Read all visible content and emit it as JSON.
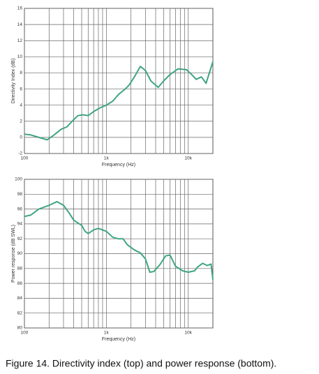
{
  "chart_data": [
    {
      "type": "line",
      "ylabel": "Directivity Index (dB)",
      "xlabel": "Frequency (Hz)",
      "log_x": true,
      "grid": true,
      "color": "#3fa57f",
      "xlim": [
        100,
        20000
      ],
      "ylim": [
        -2,
        16
      ],
      "xticks": [
        100,
        {
          "value": 1000,
          "label": "1k"
        },
        {
          "value": 10000,
          "label": "10k"
        }
      ],
      "x_minor_ticks": [
        200,
        300,
        400,
        500,
        600,
        700,
        800,
        900,
        2000,
        3000,
        4000,
        5000,
        6000,
        7000,
        8000,
        9000
      ],
      "yticks": [
        -2,
        0,
        2,
        4,
        6,
        8,
        10,
        12,
        14,
        16
      ],
      "x": [
        100,
        120,
        150,
        190,
        230,
        280,
        330,
        400,
        450,
        520,
        600,
        700,
        850,
        1000,
        1200,
        1400,
        1700,
        1900,
        2200,
        2600,
        3000,
        3500,
        4300,
        5000,
        6000,
        7500,
        9500,
        11000,
        12500,
        14500,
        16500,
        20000
      ],
      "values": [
        0.4,
        0.3,
        0,
        -0.3,
        0.3,
        1,
        1.3,
        2.2,
        2.7,
        2.8,
        2.7,
        3.2,
        3.7,
        4,
        4.5,
        5.3,
        6,
        6.5,
        7.5,
        8.8,
        8.3,
        7,
        6.2,
        7,
        7.8,
        8.5,
        8.4,
        7.8,
        7.2,
        7.5,
        6.7,
        9.4
      ]
    },
    {
      "type": "line",
      "ylabel": "Power response (dB SWL)",
      "xlabel": "Frequency (Hz)",
      "log_x": true,
      "grid": true,
      "color": "#3fa57f",
      "xlim": [
        100,
        20000
      ],
      "ylim": [
        80,
        100
      ],
      "xticks": [
        100,
        {
          "value": 1000,
          "label": "1k"
        },
        {
          "value": 10000,
          "label": "10k"
        }
      ],
      "x_minor_ticks": [
        200,
        300,
        400,
        500,
        600,
        700,
        800,
        900,
        2000,
        3000,
        4000,
        5000,
        6000,
        7000,
        8000,
        9000
      ],
      "yticks": [
        80,
        82,
        84,
        86,
        88,
        90,
        92,
        94,
        96,
        98,
        100
      ],
      "x": [
        100,
        120,
        150,
        200,
        250,
        300,
        350,
        400,
        500,
        550,
        600,
        700,
        800,
        1000,
        1200,
        1400,
        1600,
        1800,
        2200,
        2600,
        3000,
        3400,
        3800,
        4500,
        5300,
        6000,
        7000,
        8500,
        10000,
        12000,
        13000,
        15000,
        17000,
        19000,
        20000
      ],
      "values": [
        95,
        95.2,
        96,
        96.5,
        97,
        96.5,
        95.5,
        94.5,
        93.8,
        93,
        92.7,
        93.2,
        93.4,
        93,
        92.2,
        92,
        92,
        91.2,
        90.5,
        90.1,
        89.3,
        87.5,
        87.6,
        88.5,
        89.7,
        89.8,
        88.3,
        87.7,
        87.5,
        87.7,
        88.2,
        88.7,
        88.4,
        88.6,
        86.5
      ]
    }
  ],
  "caption": "Figure 14. Directivity index (top) and power response (bottom)."
}
